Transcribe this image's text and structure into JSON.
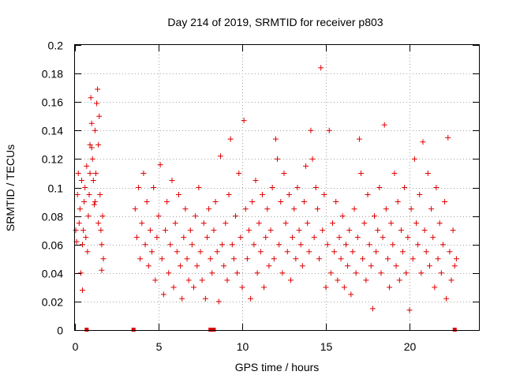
{
  "chart_data": {
    "type": "scatter",
    "title": "Day 214 of 2019, SRMTID for receiver p803",
    "xlabel": "GPS time / hours",
    "ylabel": "SRMTID / TECUs",
    "xlim": [
      0,
      24.15
    ],
    "ylim": [
      0,
      0.2
    ],
    "xticks": [
      0,
      5,
      10,
      15,
      20
    ],
    "yticks": [
      0,
      0.02,
      0.04,
      0.06,
      0.08,
      0.1,
      0.12,
      0.14,
      0.16,
      0.18,
      0.2
    ],
    "xtick_labels": [
      "0",
      "5",
      "10",
      "15",
      "20"
    ],
    "ytick_labels": [
      "0",
      "0.02",
      "0.04",
      "0.06",
      "0.08",
      "0.1",
      "0.12",
      "0.14",
      "0.16",
      "0.18",
      "0.2"
    ],
    "grid": true,
    "marker": "+",
    "color": "#e00000",
    "series": [
      {
        "name": "SRMTID",
        "note": "dense point cloud; representative points listed",
        "points": [
          [
            0.1,
            0.062
          ],
          [
            0.15,
            0.095
          ],
          [
            0.2,
            0.11
          ],
          [
            0.25,
            0.075
          ],
          [
            0.3,
            0.085
          ],
          [
            0.35,
            0.04
          ],
          [
            0.4,
            0.105
          ],
          [
            0.45,
            0.028
          ],
          [
            0.5,
            0.07
          ],
          [
            0.55,
            0.09
          ],
          [
            0.6,
            0.1
          ],
          [
            0.65,
            0.065
          ],
          [
            0.7,
            0.115
          ],
          [
            0.75,
            0.055
          ],
          [
            0.8,
            0.08
          ],
          [
            0.85,
            0.095
          ],
          [
            0.9,
            0.13
          ],
          [
            0.95,
            0.163
          ],
          [
            1.0,
            0.145
          ],
          [
            1.05,
            0.12
          ],
          [
            1.1,
            0.105
          ],
          [
            1.15,
            0.088
          ],
          [
            1.2,
            0.14
          ],
          [
            1.25,
            0.11
          ],
          [
            1.3,
            0.159
          ],
          [
            1.35,
            0.169
          ],
          [
            1.4,
            0.13
          ],
          [
            1.45,
            0.15
          ],
          [
            1.5,
            0.095
          ],
          [
            1.55,
            0.07
          ],
          [
            1.6,
            0.06
          ],
          [
            1.65,
            0.08
          ],
          [
            1.7,
            0.05
          ],
          [
            0.05,
            0.07
          ],
          [
            0.45,
            0.06
          ],
          [
            0.9,
            0.11
          ],
          [
            1.2,
            0.09
          ],
          [
            1.4,
            0.075
          ],
          [
            1.6,
            0.042
          ],
          [
            1.0,
            0.128
          ],
          [
            3.6,
            0.085
          ],
          [
            3.7,
            0.065
          ],
          [
            3.8,
            0.1
          ],
          [
            3.9,
            0.05
          ],
          [
            4.0,
            0.075
          ],
          [
            4.1,
            0.11
          ],
          [
            4.2,
            0.06
          ],
          [
            4.3,
            0.09
          ],
          [
            4.4,
            0.045
          ],
          [
            4.5,
            0.07
          ],
          [
            4.6,
            0.055
          ],
          [
            4.7,
            0.1
          ],
          [
            4.8,
            0.035
          ],
          [
            4.9,
            0.065
          ],
          [
            5.0,
            0.08
          ],
          [
            5.1,
            0.116
          ],
          [
            5.2,
            0.05
          ],
          [
            5.3,
            0.025
          ],
          [
            5.4,
            0.07
          ],
          [
            5.5,
            0.09
          ],
          [
            5.6,
            0.04
          ],
          [
            5.7,
            0.06
          ],
          [
            5.8,
            0.105
          ],
          [
            5.9,
            0.03
          ],
          [
            6.0,
            0.075
          ],
          [
            6.1,
            0.055
          ],
          [
            6.2,
            0.095
          ],
          [
            6.3,
            0.045
          ],
          [
            6.4,
            0.022
          ],
          [
            6.5,
            0.065
          ],
          [
            6.6,
            0.085
          ],
          [
            6.7,
            0.05
          ],
          [
            6.8,
            0.035
          ],
          [
            6.9,
            0.07
          ],
          [
            7.0,
            0.06
          ],
          [
            7.1,
            0.03
          ],
          [
            7.2,
            0.08
          ],
          [
            7.3,
            0.045
          ],
          [
            7.4,
            0.1
          ],
          [
            7.5,
            0.055
          ],
          [
            7.6,
            0.035
          ],
          [
            7.7,
            0.075
          ],
          [
            7.8,
            0.022
          ],
          [
            7.9,
            0.065
          ],
          [
            8.0,
            0.085
          ],
          [
            8.1,
            0.05
          ],
          [
            8.2,
            0.04
          ],
          [
            8.3,
            0.07
          ],
          [
            8.4,
            0.09
          ],
          [
            8.5,
            0.055
          ],
          [
            8.6,
            0.02
          ],
          [
            8.7,
            0.122
          ],
          [
            8.8,
            0.06
          ],
          [
            8.9,
            0.045
          ],
          [
            9.0,
            0.075
          ],
          [
            9.1,
            0.035
          ],
          [
            9.2,
            0.095
          ],
          [
            9.3,
            0.134
          ],
          [
            9.4,
            0.06
          ],
          [
            9.5,
            0.05
          ],
          [
            9.6,
            0.08
          ],
          [
            9.7,
            0.04
          ],
          [
            9.8,
            0.11
          ],
          [
            9.9,
            0.065
          ],
          [
            10.0,
            0.03
          ],
          [
            10.1,
            0.147
          ],
          [
            10.2,
            0.085
          ],
          [
            10.3,
            0.05
          ],
          [
            10.4,
            0.07
          ],
          [
            10.5,
            0.022
          ],
          [
            10.6,
            0.09
          ],
          [
            10.7,
            0.06
          ],
          [
            10.8,
            0.105
          ],
          [
            10.9,
            0.04
          ],
          [
            11.0,
            0.075
          ],
          [
            11.1,
            0.055
          ],
          [
            11.2,
            0.095
          ],
          [
            11.3,
            0.03
          ],
          [
            11.4,
            0.065
          ],
          [
            11.5,
            0.085
          ],
          [
            11.6,
            0.045
          ],
          [
            11.7,
            0.07
          ],
          [
            11.8,
            0.1
          ],
          [
            11.9,
            0.05
          ],
          [
            12.0,
            0.134
          ],
          [
            12.1,
            0.12
          ],
          [
            12.2,
            0.06
          ],
          [
            12.3,
            0.09
          ],
          [
            12.4,
            0.04
          ],
          [
            12.5,
            0.11
          ],
          [
            12.6,
            0.075
          ],
          [
            12.7,
            0.055
          ],
          [
            12.8,
            0.095
          ],
          [
            12.9,
            0.035
          ],
          [
            13.0,
            0.065
          ],
          [
            13.1,
            0.085
          ],
          [
            13.2,
            0.05
          ],
          [
            13.3,
            0.1
          ],
          [
            13.4,
            0.07
          ],
          [
            13.5,
            0.06
          ],
          [
            13.6,
            0.045
          ],
          [
            13.7,
            0.09
          ],
          [
            13.8,
            0.115
          ],
          [
            13.9,
            0.075
          ],
          [
            14.0,
            0.055
          ],
          [
            14.1,
            0.14
          ],
          [
            14.2,
            0.12
          ],
          [
            14.3,
            0.065
          ],
          [
            14.4,
            0.1
          ],
          [
            14.5,
            0.085
          ],
          [
            14.6,
            0.05
          ],
          [
            14.7,
            0.184
          ],
          [
            14.8,
            0.07
          ],
          [
            14.9,
            0.095
          ],
          [
            15.0,
            0.03
          ],
          [
            15.1,
            0.06
          ],
          [
            15.2,
            0.14
          ],
          [
            15.3,
            0.04
          ],
          [
            15.4,
            0.075
          ],
          [
            15.5,
            0.055
          ],
          [
            15.6,
            0.09
          ],
          [
            15.7,
            0.035
          ],
          [
            15.8,
            0.065
          ],
          [
            15.9,
            0.05
          ],
          [
            16.0,
            0.08
          ],
          [
            16.1,
            0.03
          ],
          [
            16.2,
            0.06
          ],
          [
            16.3,
            0.045
          ],
          [
            16.4,
            0.07
          ],
          [
            16.5,
            0.025
          ],
          [
            16.6,
            0.055
          ],
          [
            16.7,
            0.085
          ],
          [
            16.8,
            0.04
          ],
          [
            16.9,
            0.065
          ],
          [
            17.0,
            0.134
          ],
          [
            17.1,
            0.11
          ],
          [
            17.2,
            0.05
          ],
          [
            17.3,
            0.075
          ],
          [
            17.4,
            0.035
          ],
          [
            17.5,
            0.095
          ],
          [
            17.6,
            0.06
          ],
          [
            17.7,
            0.045
          ],
          [
            17.8,
            0.015
          ],
          [
            17.9,
            0.08
          ],
          [
            18.0,
            0.055
          ],
          [
            18.1,
            0.07
          ],
          [
            18.2,
            0.1
          ],
          [
            18.3,
            0.04
          ],
          [
            18.4,
            0.065
          ],
          [
            18.5,
            0.144
          ],
          [
            18.6,
            0.085
          ],
          [
            18.7,
            0.05
          ],
          [
            18.8,
            0.03
          ],
          [
            18.9,
            0.075
          ],
          [
            19.0,
            0.06
          ],
          [
            19.1,
            0.11
          ],
          [
            19.2,
            0.045
          ],
          [
            19.3,
            0.09
          ],
          [
            19.4,
            0.035
          ],
          [
            19.5,
            0.07
          ],
          [
            19.6,
            0.055
          ],
          [
            19.7,
            0.1
          ],
          [
            19.8,
            0.04
          ],
          [
            19.9,
            0.065
          ],
          [
            20.0,
            0.014
          ],
          [
            20.1,
            0.085
          ],
          [
            20.2,
            0.05
          ],
          [
            20.3,
            0.12
          ],
          [
            20.4,
            0.075
          ],
          [
            20.5,
            0.06
          ],
          [
            20.6,
            0.095
          ],
          [
            20.7,
            0.04
          ],
          [
            20.8,
            0.132
          ],
          [
            20.9,
            0.07
          ],
          [
            21.0,
            0.055
          ],
          [
            21.1,
            0.11
          ],
          [
            21.2,
            0.045
          ],
          [
            21.3,
            0.085
          ],
          [
            21.4,
            0.065
          ],
          [
            21.5,
            0.03
          ],
          [
            21.6,
            0.1
          ],
          [
            21.7,
            0.05
          ],
          [
            21.8,
            0.075
          ],
          [
            21.9,
            0.04
          ],
          [
            22.0,
            0.06
          ],
          [
            22.1,
            0.09
          ],
          [
            22.2,
            0.022
          ],
          [
            22.3,
            0.135
          ],
          [
            22.4,
            0.055
          ],
          [
            22.5,
            0.035
          ],
          [
            22.6,
            0.07
          ],
          [
            22.7,
            0.045
          ],
          [
            22.8,
            0.05
          ]
        ]
      }
    ],
    "gap_markers": {
      "note": "small red squares on x-axis indicating data gaps",
      "x": [
        0.7,
        3.5,
        8.1,
        8.3,
        22.7
      ]
    }
  }
}
